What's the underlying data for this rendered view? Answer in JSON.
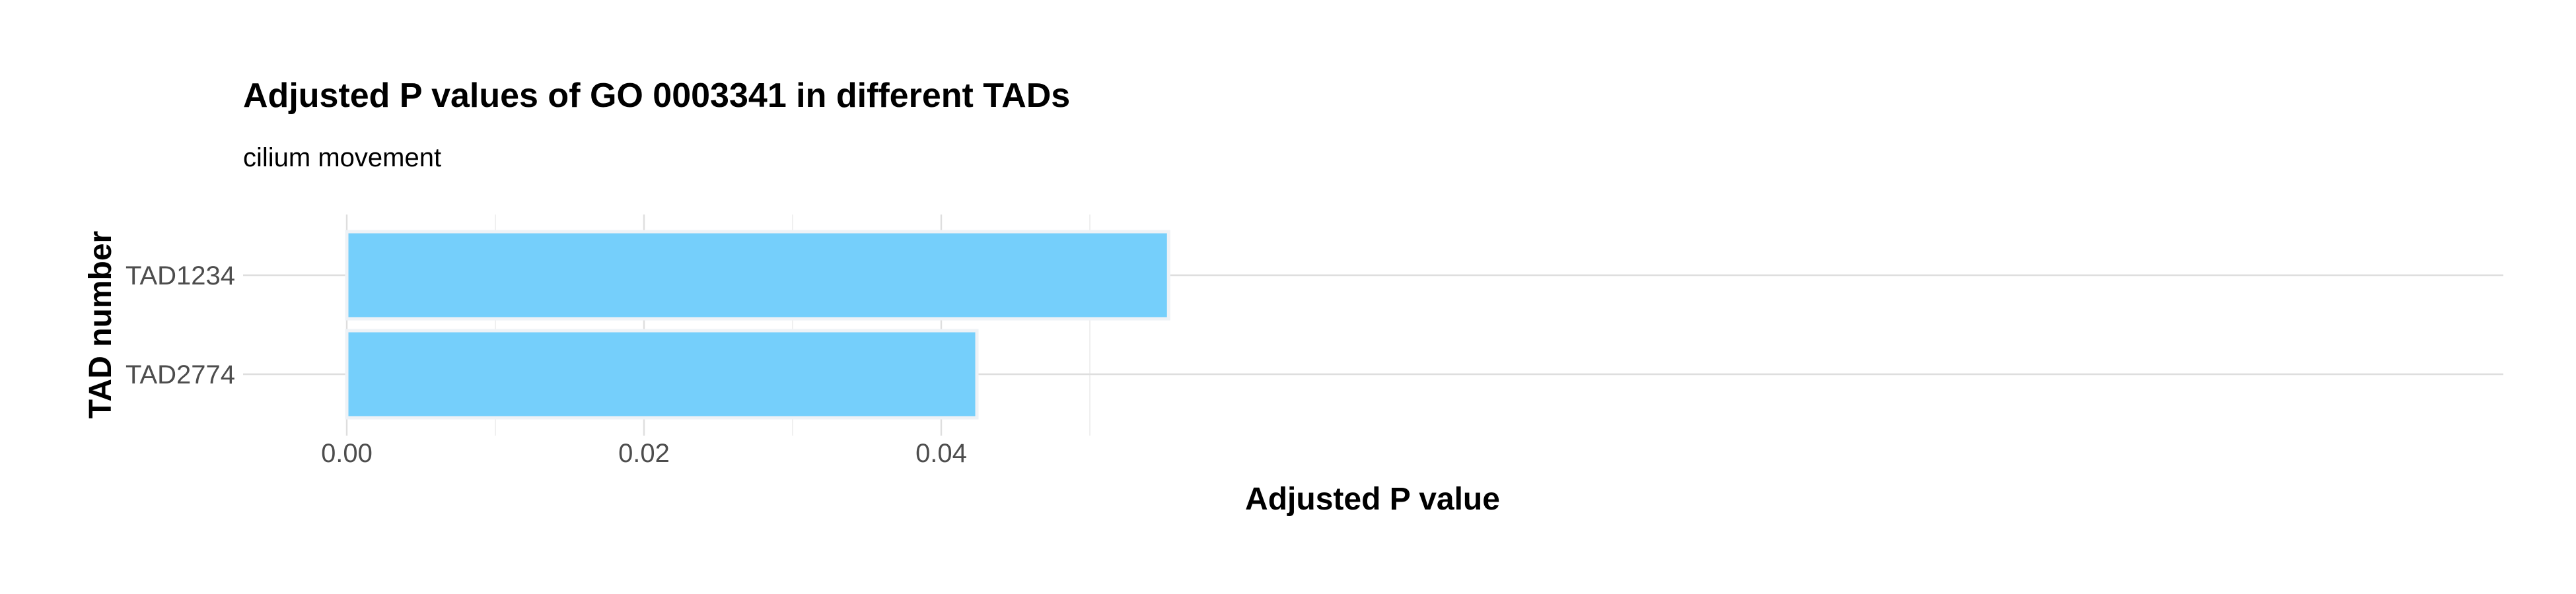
{
  "chart_data": {
    "type": "bar",
    "orientation": "horizontal",
    "title": "Adjusted P values of GO 0003341 in different TADs",
    "subtitle": "cilium movement",
    "xlabel": "Adjusted P value",
    "ylabel": "TAD number",
    "categories": [
      "TAD1234",
      "TAD2774"
    ],
    "values": [
      0.0553,
      0.0424
    ],
    "xlim": [
      0,
      0.0581
    ],
    "xticks": [
      0.0,
      0.02,
      0.04
    ],
    "xtick_labels": [
      "0.00",
      "0.02",
      "0.04"
    ],
    "x_minor_gridlines": [
      0.01,
      0.03,
      0.05
    ],
    "grid": true,
    "legend": "none",
    "bar_color": "#75cffb",
    "bar_outline_color": "#eef2f6"
  }
}
